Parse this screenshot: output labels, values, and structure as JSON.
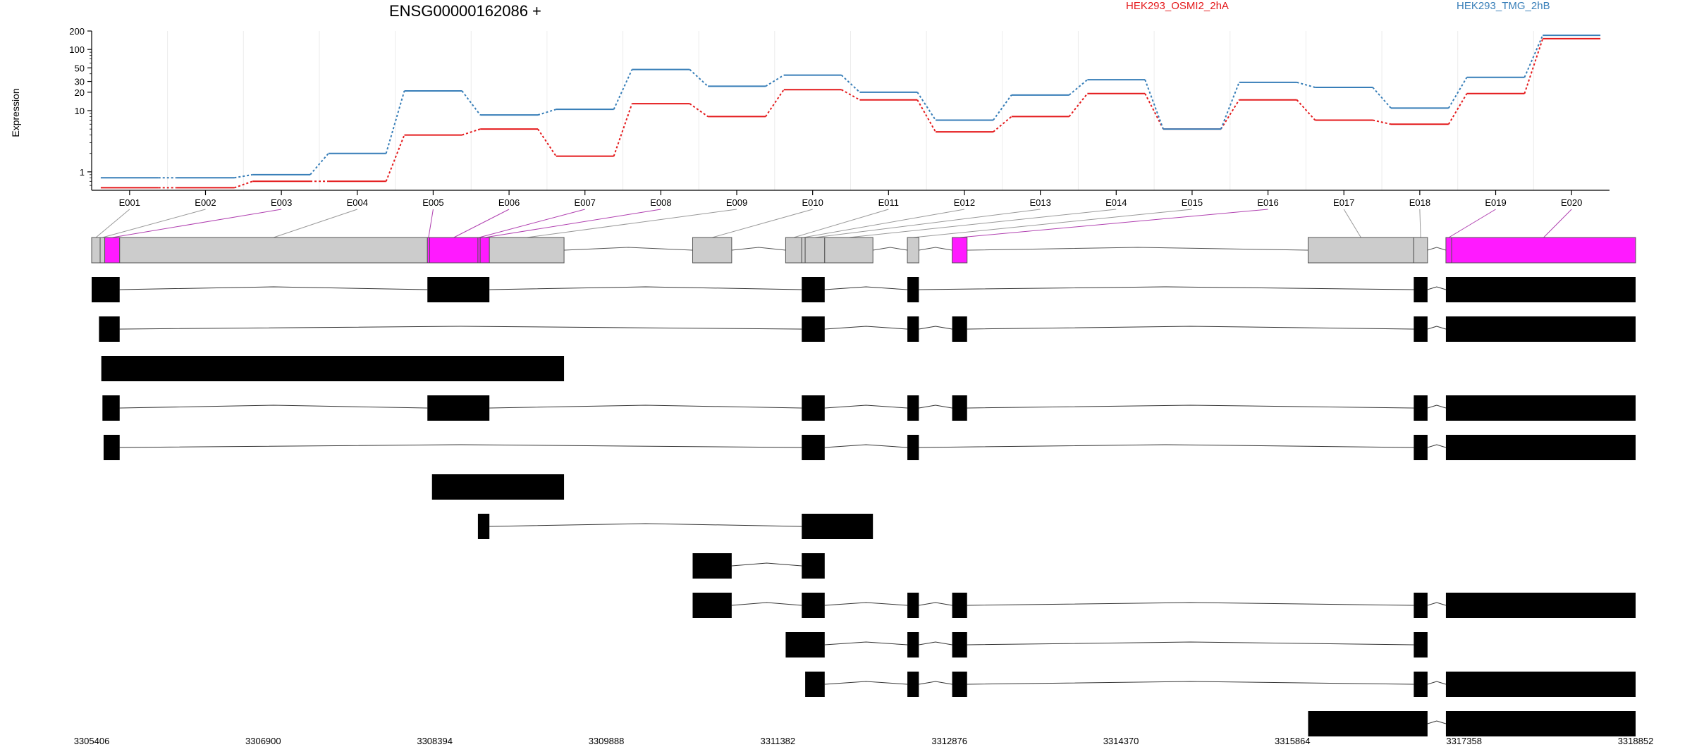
{
  "chart_data": {
    "type": "line",
    "title": "ENSG00000162086 +",
    "ylabel": "Expression",
    "yscale": "log",
    "ylim": [
      0.5,
      200
    ],
    "yticks": [
      1,
      10,
      20,
      30,
      50,
      100,
      200
    ],
    "ytick_labels": [
      "1",
      "10",
      "20",
      "30",
      "50",
      "100",
      "200"
    ],
    "grid": "vertical lines at exon boundaries",
    "legend_placement": "top-right",
    "categories": [
      "E001",
      "E002",
      "E003",
      "E004",
      "E005",
      "E006",
      "E007",
      "E008",
      "E009",
      "E010",
      "E011",
      "E012",
      "E013",
      "E014",
      "E015",
      "E016",
      "E017",
      "E018",
      "E019",
      "E020"
    ],
    "series": [
      {
        "name": "HEK293_OSMI2_2hA",
        "color": "#e41a1c",
        "values": [
          0.55,
          0.55,
          0.7,
          0.7,
          4.0,
          5.0,
          1.8,
          13,
          8,
          22,
          15,
          4.5,
          8,
          19,
          5,
          15,
          7,
          6,
          19,
          150
        ]
      },
      {
        "name": "HEK293_TMG_2hB",
        "color": "#377eb8",
        "values": [
          0.8,
          0.8,
          0.9,
          2.0,
          21,
          8.5,
          10.5,
          47,
          25,
          38,
          20,
          7,
          18,
          32,
          5,
          29,
          24,
          11,
          35,
          170
        ]
      }
    ]
  },
  "gene_model": {
    "genomic_range": [
      3305406,
      3318852
    ],
    "axis_ticks": [
      "3305406",
      "3306900",
      "3308394",
      "3309888",
      "3311382",
      "3312876",
      "3314370",
      "3315864",
      "3317358",
      "3318852"
    ],
    "colors": {
      "exon_fill": "#cccccc",
      "highlight": "#ff1aff",
      "transcript": "#000000"
    },
    "exons": [
      {
        "id": "E001",
        "start": 3305406,
        "end": 3305480,
        "highlight": false
      },
      {
        "id": "E002",
        "start": 3305480,
        "end": 3305520,
        "highlight": false
      },
      {
        "id": "E003",
        "start": 3305520,
        "end": 3305650,
        "highlight": true
      },
      {
        "id": "E004",
        "start": 3305650,
        "end": 3308330,
        "highlight": false
      },
      {
        "id": "E005",
        "start": 3308330,
        "end": 3308350,
        "highlight": true
      },
      {
        "id": "E006",
        "start": 3308350,
        "end": 3308770,
        "highlight": true
      },
      {
        "id": "E007",
        "start": 3308770,
        "end": 3308790,
        "highlight": true
      },
      {
        "id": "E008",
        "start": 3308790,
        "end": 3308870,
        "highlight": true
      },
      {
        "id": "E009",
        "start": 3308870,
        "end": 3309520,
        "highlight": false
      },
      {
        "id": "E010",
        "start": 3310640,
        "end": 3310980,
        "highlight": false
      },
      {
        "id": "E011",
        "start": 3311450,
        "end": 3311590,
        "highlight": false
      },
      {
        "id": "E012",
        "start": 3311590,
        "end": 3311620,
        "highlight": false
      },
      {
        "id": "E013",
        "start": 3311620,
        "end": 3311790,
        "highlight": false
      },
      {
        "id": "E014",
        "start": 3311790,
        "end": 3312210,
        "highlight": false
      },
      {
        "id": "E015",
        "start": 3312510,
        "end": 3312610,
        "highlight": false
      },
      {
        "id": "E016",
        "start": 3312900,
        "end": 3313030,
        "highlight": true
      },
      {
        "id": "E017",
        "start": 3316000,
        "end": 3316920,
        "highlight": false
      },
      {
        "id": "E018",
        "start": 3316920,
        "end": 3317040,
        "highlight": false
      },
      {
        "id": "E019",
        "start": 3317200,
        "end": 3317250,
        "highlight": true
      },
      {
        "id": "E020",
        "start": 3317250,
        "end": 3318852,
        "highlight": true
      }
    ],
    "transcripts": [
      [
        [
          3305406,
          3305650
        ],
        [
          3308330,
          3308870
        ],
        [
          3311590,
          3311790
        ],
        [
          3312510,
          3312610
        ],
        [
          3316920,
          3317040
        ],
        [
          3317200,
          3318852
        ]
      ],
      [
        [
          3305470,
          3305650
        ],
        [
          3311590,
          3311790
        ],
        [
          3312510,
          3312610
        ],
        [
          3312900,
          3313030
        ],
        [
          3316920,
          3317040
        ],
        [
          3317200,
          3318852
        ]
      ],
      [
        [
          3305490,
          3309520
        ]
      ],
      [
        [
          3305500,
          3305650
        ],
        [
          3308330,
          3308870
        ],
        [
          3311590,
          3311790
        ],
        [
          3312510,
          3312610
        ],
        [
          3312900,
          3313030
        ],
        [
          3316920,
          3317040
        ],
        [
          3317200,
          3318852
        ]
      ],
      [
        [
          3305510,
          3305650
        ],
        [
          3311590,
          3311790
        ],
        [
          3312510,
          3312610
        ],
        [
          3316920,
          3317040
        ],
        [
          3317200,
          3318852
        ]
      ],
      [
        [
          3308370,
          3309520
        ]
      ],
      [
        [
          3308770,
          3308870
        ],
        [
          3311590,
          3312210
        ]
      ],
      [
        [
          3310640,
          3310980
        ],
        [
          3311590,
          3311790
        ]
      ],
      [
        [
          3310640,
          3310980
        ],
        [
          3311590,
          3311790
        ],
        [
          3312510,
          3312610
        ],
        [
          3312900,
          3313030
        ],
        [
          3316920,
          3317040
        ],
        [
          3317200,
          3318852
        ]
      ],
      [
        [
          3311450,
          3311790
        ],
        [
          3312510,
          3312610
        ],
        [
          3312900,
          3313030
        ],
        [
          3316920,
          3317040
        ]
      ],
      [
        [
          3311620,
          3311790
        ],
        [
          3312510,
          3312610
        ],
        [
          3312900,
          3313030
        ],
        [
          3316920,
          3317040
        ],
        [
          3317200,
          3318852
        ]
      ],
      [
        [
          3316000,
          3317040
        ],
        [
          3317200,
          3318852
        ]
      ]
    ]
  }
}
